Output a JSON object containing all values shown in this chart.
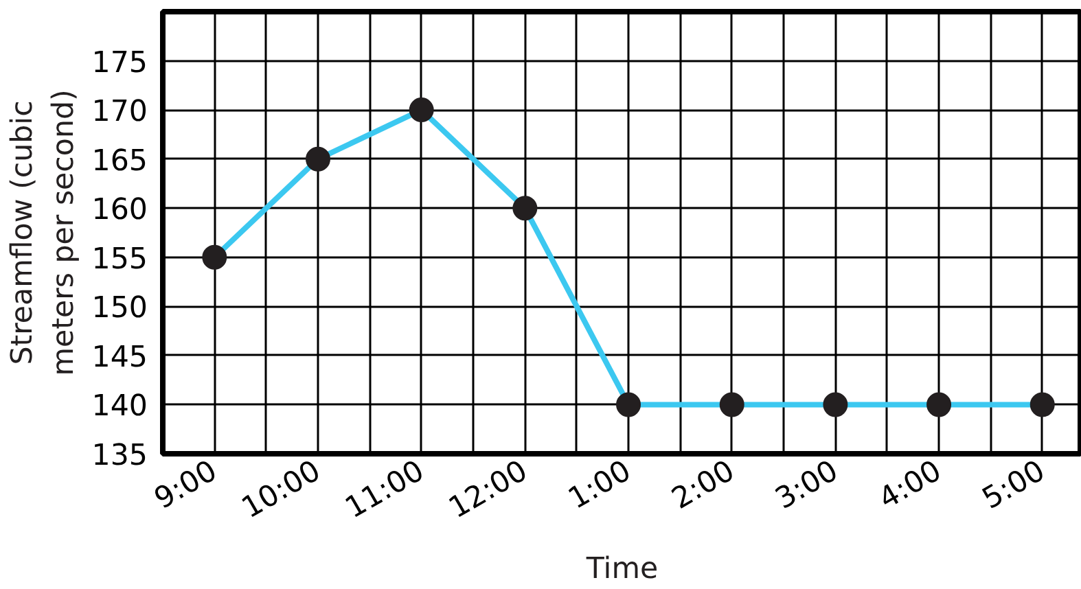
{
  "chart_data": {
    "type": "line",
    "xlabel": "Time",
    "ylabel": "Streamflow (cubic\nmeters per second)",
    "categories": [
      "9:00",
      "10:00",
      "11:00",
      "12:00",
      "1:00",
      "2:00",
      "3:00",
      "4:00",
      "5:00"
    ],
    "series": [
      {
        "color": "#3cc8f0",
        "values": [
          155,
          165,
          170,
          160,
          140,
          140,
          140,
          140,
          140
        ]
      }
    ],
    "ylim": [
      135,
      180
    ],
    "yticks": [
      135,
      140,
      145,
      150,
      155,
      160,
      165,
      170,
      175
    ],
    "grid": true,
    "marker": "circle",
    "line_style": "solid"
  }
}
